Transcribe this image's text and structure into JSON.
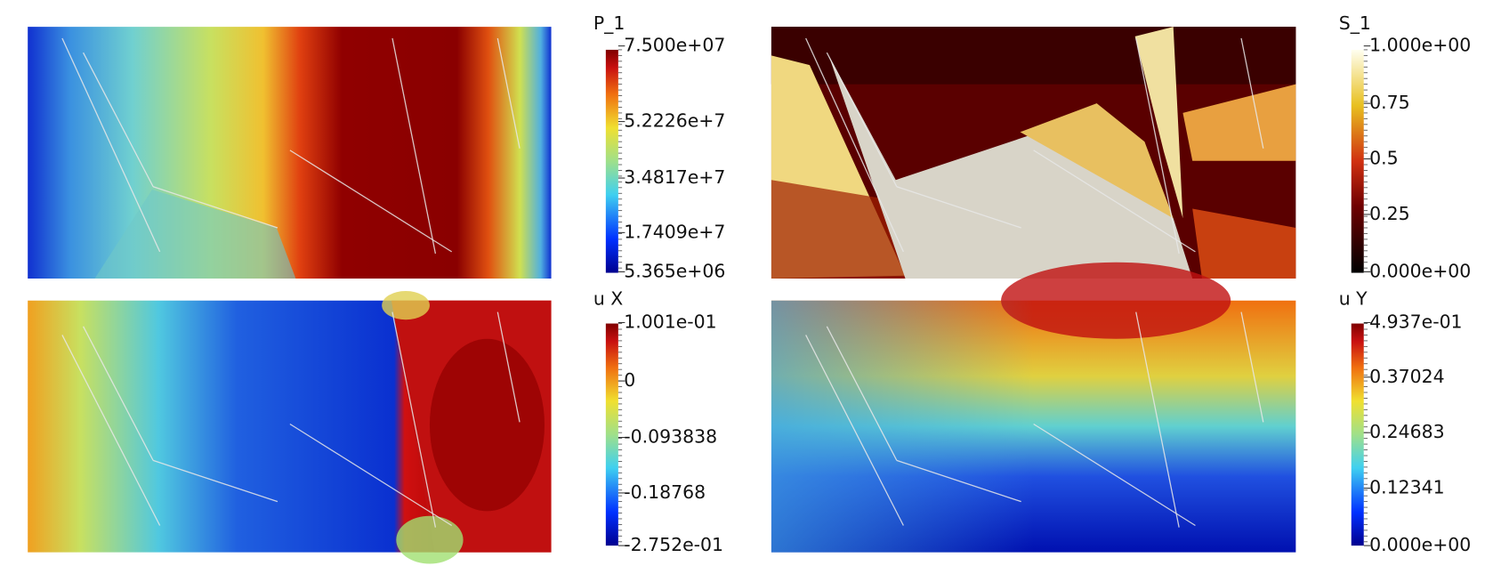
{
  "panels": [
    {
      "title": "P_1",
      "labels": [
        "7.500e+07",
        "5.2226e+7",
        "3.4817e+7",
        "1.7409e+7",
        "5.365e+06"
      ]
    },
    {
      "title": "S_1",
      "labels": [
        "1.000e+00",
        "0.75",
        "0.5",
        "0.25",
        "0.000e+00"
      ]
    },
    {
      "title": "u X",
      "labels": [
        "1.001e-01",
        "0",
        "-0.093838",
        "-0.18768",
        "-2.752e-01"
      ]
    },
    {
      "title": "u Y",
      "labels": [
        "4.937e-01",
        "0.37024",
        "0.24683",
        "0.12341",
        "0.000e+00"
      ]
    }
  ]
}
